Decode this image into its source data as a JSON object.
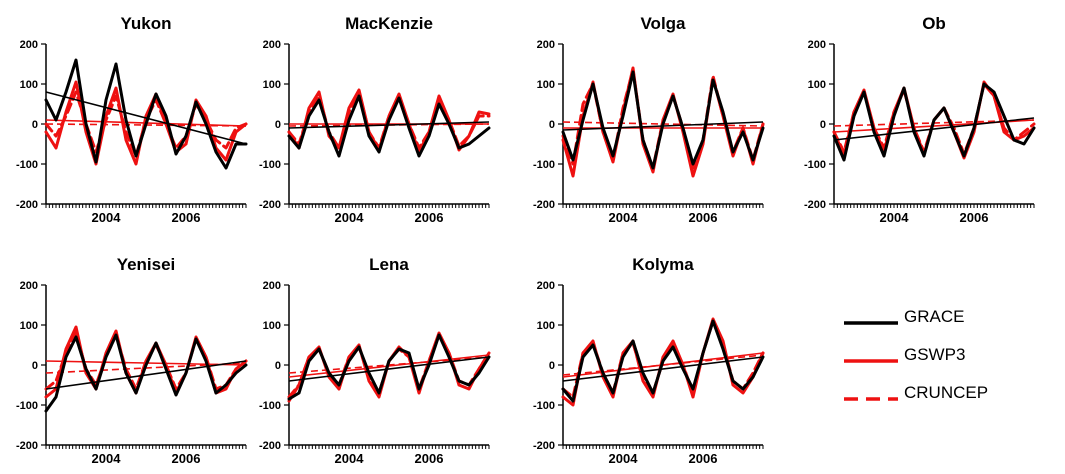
{
  "chart_data": {
    "type": "line",
    "ylim": [
      -200,
      200
    ],
    "yticks": [
      -200,
      -100,
      0,
      100,
      200
    ],
    "xlim": [
      2003.0,
      2008.0
    ],
    "xticks": [
      2004,
      2006
    ],
    "grid": false,
    "legend": {
      "placement": "bottom-right",
      "entries": [
        {
          "name": "GRACE",
          "color": "#000000",
          "style": "solid"
        },
        {
          "name": "GSWP3",
          "color": "#ee1111",
          "style": "solid"
        },
        {
          "name": "CRUNCEP",
          "color": "#ee1111",
          "style": "dashed"
        }
      ]
    },
    "panels": [
      {
        "title": "Yukon",
        "x": [
          2003.0,
          2003.25,
          2003.5,
          2003.75,
          2004.0,
          2004.25,
          2004.5,
          2004.75,
          2005.0,
          2005.25,
          2005.5,
          2005.75,
          2006.0,
          2006.25,
          2006.5,
          2006.75,
          2007.0,
          2007.25,
          2007.5,
          2007.75,
          2008.0
        ],
        "series": [
          {
            "name": "GRACE",
            "values": [
              60,
              10,
              80,
              160,
              0,
              -95,
              60,
              150,
              10,
              -80,
              0,
              75,
              20,
              -75,
              -30,
              55,
              0,
              -70,
              -110,
              -50,
              -50
            ],
            "trend": [
              80,
              -50
            ]
          },
          {
            "name": "GSWP3",
            "values": [
              -20,
              -60,
              30,
              105,
              -20,
              -100,
              20,
              90,
              -40,
              -100,
              20,
              75,
              0,
              -70,
              -50,
              60,
              20,
              -60,
              -90,
              -20,
              0
            ],
            "trend": [
              10,
              -5
            ]
          },
          {
            "name": "CRUNCEP",
            "values": [
              0,
              -30,
              20,
              80,
              0,
              -70,
              10,
              70,
              -20,
              -80,
              10,
              60,
              0,
              -60,
              -30,
              50,
              10,
              -40,
              -60,
              -10,
              0
            ],
            "trend": [
              0,
              -5
            ]
          }
        ]
      },
      {
        "title": "MacKenzie",
        "x": [
          2003.0,
          2003.25,
          2003.5,
          2003.75,
          2004.0,
          2004.25,
          2004.5,
          2004.75,
          2005.0,
          2005.25,
          2005.5,
          2005.75,
          2006.0,
          2006.25,
          2006.5,
          2006.75,
          2007.0,
          2007.25,
          2007.5,
          2007.75,
          2008.0
        ],
        "series": [
          {
            "name": "GRACE",
            "values": [
              -30,
              -60,
              20,
              60,
              -20,
              -80,
              10,
              70,
              -30,
              -70,
              10,
              65,
              -10,
              -80,
              -30,
              50,
              0,
              -60,
              -50,
              -30,
              -10
            ],
            "trend": [
              -10,
              5
            ]
          },
          {
            "name": "GSWP3",
            "values": [
              -20,
              -60,
              40,
              80,
              -30,
              -60,
              40,
              85,
              -20,
              -65,
              20,
              75,
              0,
              -70,
              -20,
              70,
              10,
              -65,
              -30,
              30,
              25
            ],
            "trend": [
              0,
              0
            ]
          },
          {
            "name": "CRUNCEP",
            "values": [
              -20,
              -50,
              30,
              70,
              -20,
              -60,
              30,
              80,
              -20,
              -60,
              20,
              70,
              0,
              -60,
              -20,
              60,
              10,
              -55,
              -30,
              20,
              20
            ],
            "trend": [
              -5,
              0
            ]
          }
        ]
      },
      {
        "title": "Volga",
        "x": [
          2003.0,
          2003.25,
          2003.5,
          2003.75,
          2004.0,
          2004.25,
          2004.5,
          2004.75,
          2005.0,
          2005.25,
          2005.5,
          2005.75,
          2006.0,
          2006.25,
          2006.5,
          2006.75,
          2007.0,
          2007.25,
          2007.5,
          2007.75,
          2008.0
        ],
        "series": [
          {
            "name": "GRACE",
            "values": [
              -20,
              -90,
              10,
              100,
              -10,
              -80,
              20,
              130,
              -40,
              -110,
              0,
              70,
              -10,
              -100,
              -40,
              110,
              30,
              -70,
              -20,
              -90,
              -10
            ],
            "trend": [
              -15,
              5
            ]
          },
          {
            "name": "GSWP3",
            "values": [
              -40,
              -130,
              20,
              105,
              -20,
              -95,
              30,
              140,
              -50,
              -120,
              10,
              75,
              -20,
              -130,
              -50,
              115,
              20,
              -80,
              -10,
              -100,
              0
            ],
            "trend": [
              -10,
              -10
            ]
          },
          {
            "name": "CRUNCEP",
            "values": [
              -30,
              -100,
              50,
              100,
              -20,
              -90,
              40,
              135,
              -40,
              -110,
              10,
              70,
              -10,
              -110,
              -40,
              120,
              20,
              -70,
              -10,
              -90,
              0
            ],
            "trend": [
              5,
              -5
            ]
          }
        ]
      },
      {
        "title": "Ob",
        "x": [
          2003.0,
          2003.25,
          2003.5,
          2003.75,
          2004.0,
          2004.25,
          2004.5,
          2004.75,
          2005.0,
          2005.25,
          2005.5,
          2005.75,
          2006.0,
          2006.25,
          2006.5,
          2006.75,
          2007.0,
          2007.25,
          2007.5,
          2007.75,
          2008.0
        ],
        "series": [
          {
            "name": "GRACE",
            "values": [
              -30,
              -90,
              20,
              80,
              -20,
              -80,
              20,
              90,
              -20,
              -80,
              10,
              40,
              -20,
              -80,
              -10,
              100,
              80,
              20,
              -40,
              -50,
              -10
            ],
            "trend": [
              -40,
              15
            ]
          },
          {
            "name": "GSWP3",
            "values": [
              -20,
              -80,
              30,
              85,
              -10,
              -70,
              30,
              90,
              -10,
              -75,
              10,
              40,
              -20,
              -85,
              -20,
              105,
              70,
              -20,
              -40,
              -30,
              -10
            ],
            "trend": [
              -20,
              10
            ]
          },
          {
            "name": "CRUNCEP",
            "values": [
              -20,
              -70,
              30,
              80,
              -10,
              -60,
              30,
              85,
              -10,
              -70,
              10,
              40,
              -10,
              -75,
              -10,
              100,
              70,
              -10,
              -40,
              -20,
              0
            ],
            "trend": [
              -5,
              10
            ]
          }
        ]
      },
      {
        "title": "Yenisei",
        "x": [
          2003.0,
          2003.25,
          2003.5,
          2003.75,
          2004.0,
          2004.25,
          2004.5,
          2004.75,
          2005.0,
          2005.25,
          2005.5,
          2005.75,
          2006.0,
          2006.25,
          2006.5,
          2006.75,
          2007.0,
          2007.25,
          2007.5,
          2007.75,
          2008.0
        ],
        "series": [
          {
            "name": "GRACE",
            "values": [
              -115,
              -80,
              20,
              70,
              -10,
              -60,
              20,
              75,
              -20,
              -70,
              0,
              55,
              -10,
              -75,
              -20,
              65,
              10,
              -70,
              -50,
              -20,
              0
            ],
            "trend": [
              -60,
              10
            ]
          },
          {
            "name": "GSWP3",
            "values": [
              -80,
              -60,
              40,
              95,
              -20,
              -60,
              30,
              85,
              -20,
              -70,
              10,
              55,
              0,
              -70,
              -20,
              70,
              20,
              -70,
              -60,
              -10,
              10
            ],
            "trend": [
              10,
              0
            ]
          },
          {
            "name": "CRUNCEP",
            "values": [
              -60,
              -40,
              30,
              80,
              -10,
              -50,
              20,
              75,
              -10,
              -60,
              10,
              50,
              0,
              -60,
              -20,
              65,
              20,
              -60,
              -50,
              -10,
              10
            ],
            "trend": [
              -20,
              5
            ]
          }
        ]
      },
      {
        "title": "Lena",
        "x": [
          2003.0,
          2003.25,
          2003.5,
          2003.75,
          2004.0,
          2004.25,
          2004.5,
          2004.75,
          2005.0,
          2005.25,
          2005.5,
          2005.75,
          2006.0,
          2006.25,
          2006.5,
          2006.75,
          2007.0,
          2007.25,
          2007.5,
          2007.75,
          2008.0
        ],
        "series": [
          {
            "name": "GRACE",
            "values": [
              -85,
              -70,
              10,
              40,
              -20,
              -50,
              10,
              45,
              -20,
              -70,
              10,
              40,
              30,
              -60,
              0,
              75,
              20,
              -40,
              -50,
              -20,
              20
            ],
            "trend": [
              -40,
              20
            ]
          },
          {
            "name": "GSWP3",
            "values": [
              -90,
              -50,
              20,
              45,
              -30,
              -60,
              20,
              50,
              -40,
              -80,
              10,
              45,
              20,
              -70,
              10,
              80,
              30,
              -50,
              -60,
              -10,
              30
            ],
            "trend": [
              -30,
              25
            ]
          },
          {
            "name": "CRUNCEP",
            "values": [
              -80,
              -50,
              20,
              40,
              -20,
              -50,
              20,
              45,
              -30,
              -70,
              10,
              40,
              20,
              -60,
              10,
              75,
              30,
              -40,
              -50,
              -10,
              30
            ],
            "trend": [
              -20,
              20
            ]
          }
        ]
      },
      {
        "title": "Kolyma",
        "x": [
          2003.0,
          2003.25,
          2003.5,
          2003.75,
          2004.0,
          2004.25,
          2004.5,
          2004.75,
          2005.0,
          2005.25,
          2005.5,
          2005.75,
          2006.0,
          2006.25,
          2006.5,
          2006.75,
          2007.0,
          2007.25,
          2007.5,
          2007.75,
          2008.0
        ],
        "series": [
          {
            "name": "GRACE",
            "values": [
              -60,
              -90,
              20,
              50,
              -20,
              -70,
              20,
              60,
              -20,
              -70,
              10,
              45,
              -10,
              -60,
              30,
              110,
              40,
              -40,
              -60,
              -30,
              20
            ],
            "trend": [
              -40,
              20
            ]
          },
          {
            "name": "GSWP3",
            "values": [
              -80,
              -100,
              30,
              60,
              -30,
              -80,
              30,
              60,
              -40,
              -80,
              20,
              60,
              0,
              -80,
              30,
              115,
              60,
              -50,
              -70,
              -30,
              30
            ],
            "trend": [
              -30,
              30
            ]
          },
          {
            "name": "CRUNCEP",
            "values": [
              -60,
              -80,
              30,
              55,
              -20,
              -70,
              30,
              55,
              -30,
              -70,
              10,
              55,
              0,
              -70,
              30,
              110,
              50,
              -40,
              -60,
              -20,
              30
            ],
            "trend": [
              -25,
              25
            ]
          }
        ]
      }
    ]
  }
}
